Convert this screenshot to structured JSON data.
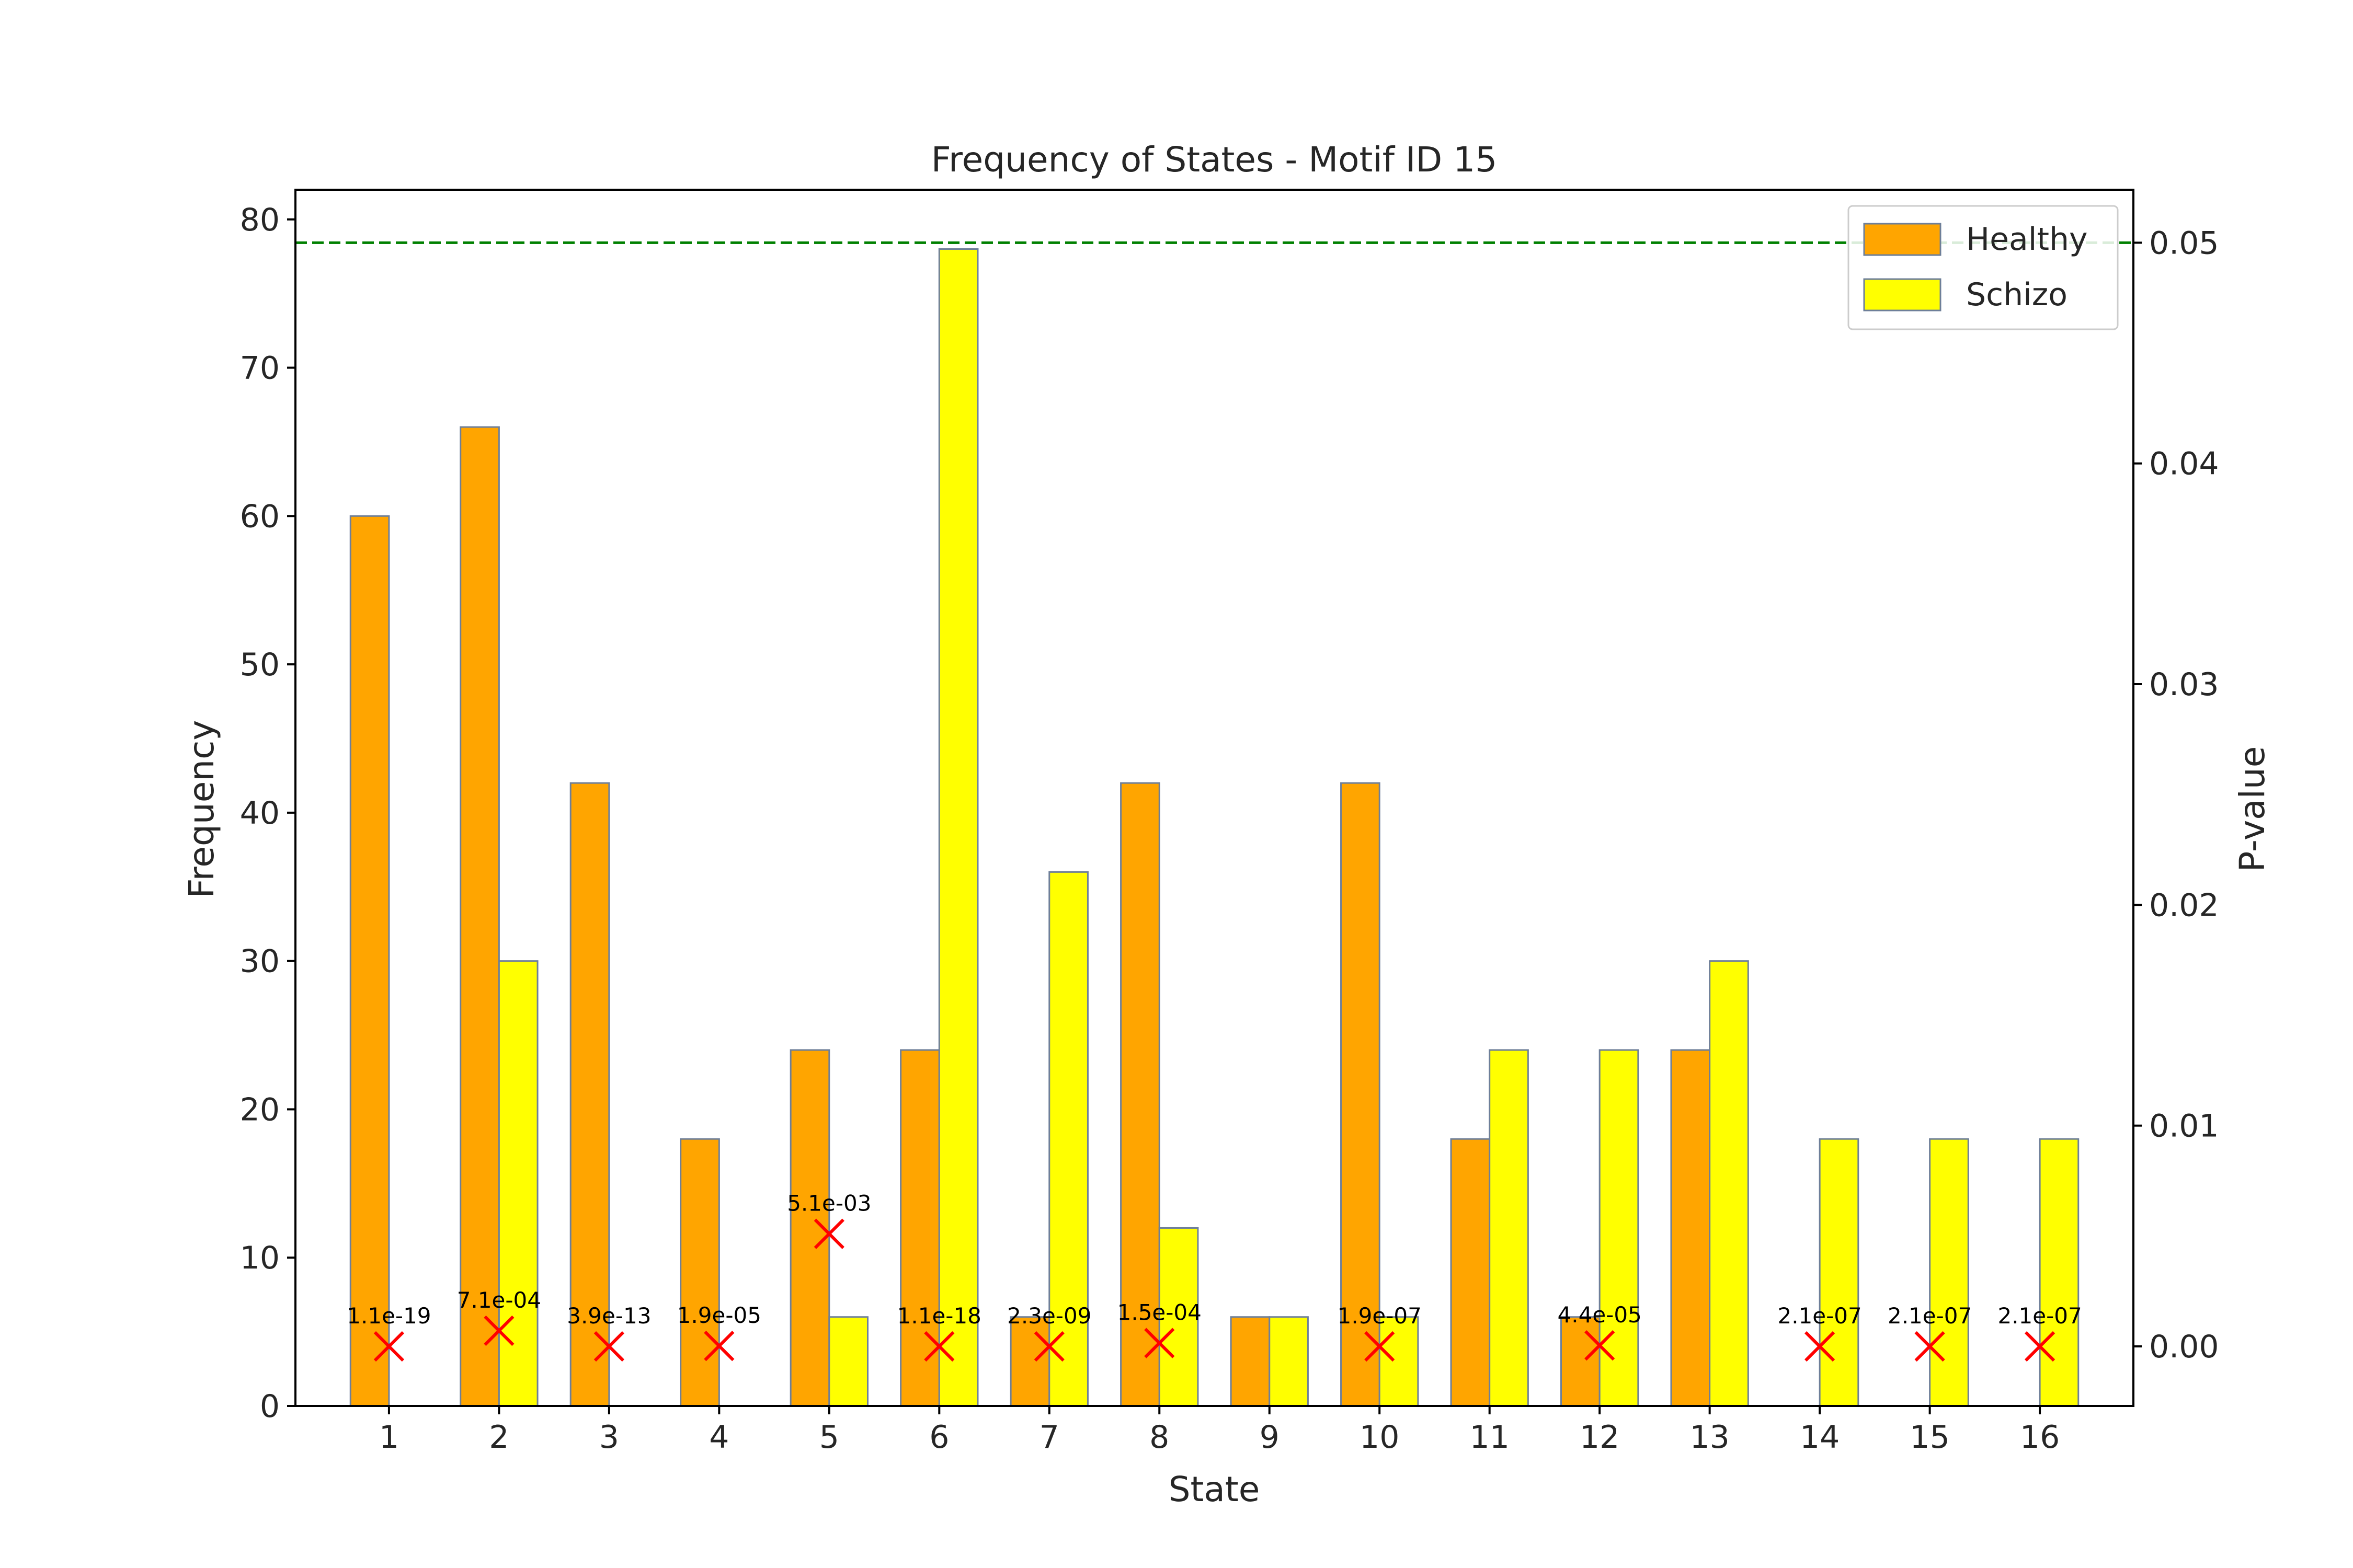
{
  "chart_data": {
    "type": "bar",
    "title": "Frequency of States - Motif ID 15",
    "xlabel": "State",
    "ylabel": "Frequency",
    "y2label": "P-value",
    "categories": [
      "1",
      "2",
      "3",
      "4",
      "5",
      "6",
      "7",
      "8",
      "9",
      "10",
      "11",
      "12",
      "13",
      "14",
      "15",
      "16"
    ],
    "series": [
      {
        "name": "Healthy",
        "color": "#ffa500",
        "values": [
          60,
          66,
          42,
          18,
          24,
          24,
          6,
          42,
          6,
          42,
          18,
          6,
          24,
          0,
          0,
          0
        ]
      },
      {
        "name": "Schizo",
        "color": "#ffff00",
        "values": [
          0,
          30,
          0,
          0,
          6,
          78,
          36,
          12,
          6,
          6,
          24,
          24,
          30,
          18,
          18,
          18
        ]
      }
    ],
    "ylim": [
      0,
      82
    ],
    "yticks": [
      0,
      10,
      20,
      30,
      40,
      50,
      60,
      70,
      80
    ],
    "y2lim": [
      -0.0027,
      0.0524
    ],
    "y2ticks": [
      "0.00",
      "0.01",
      "0.02",
      "0.03",
      "0.04",
      "0.05"
    ],
    "y2tick_values": [
      0,
      0.01,
      0.02,
      0.03,
      0.04,
      0.05
    ],
    "pvalues": [
      1.1e-19,
      0.00071,
      3.9e-13,
      1.9e-05,
      0.0051,
      1.1e-18,
      2.3e-09,
      0.00015,
      null,
      1.9e-07,
      null,
      4.4e-05,
      null,
      2.1e-07,
      2.1e-07,
      2.1e-07
    ],
    "pvalue_labels": [
      "1.1e-19",
      "7.1e-04",
      "3.9e-13",
      "1.9e-05",
      "5.1e-03",
      "1.1e-18",
      "2.3e-09",
      "1.5e-04",
      "",
      "1.9e-07",
      "",
      "4.4e-05",
      "",
      "2.1e-07",
      "2.1e-07",
      "2.1e-07"
    ],
    "pvalue_marker_color": "#ff0000",
    "threshold": 0.05,
    "threshold_color": "#008000",
    "legend_position": "upper-right",
    "bar_edge_color": "#6e7f99"
  }
}
